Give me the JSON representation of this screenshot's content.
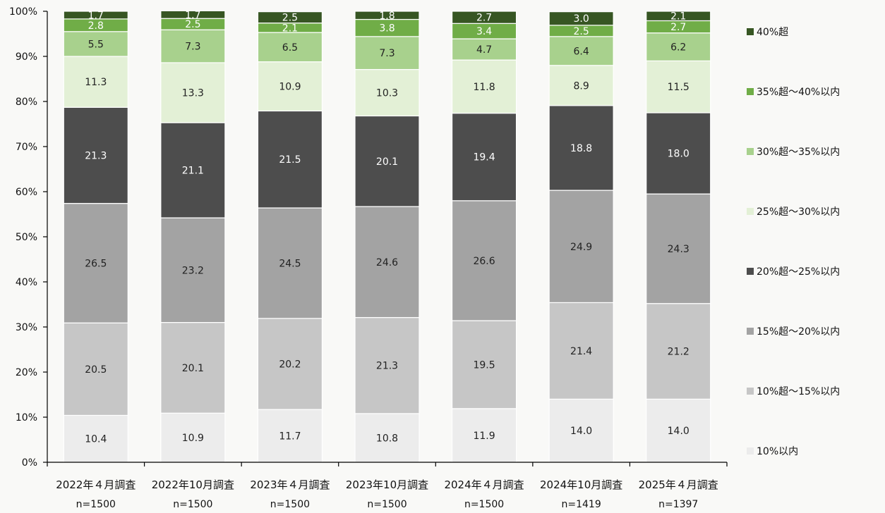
{
  "chart_data": {
    "type": "bar",
    "stacked": true,
    "percent": true,
    "categories": [
      "2022年４月調査",
      "2022年10月調査",
      "2023年４月調査",
      "2023年10月調査",
      "2024年４月調査",
      "2024年10月調査",
      "2025年４月調査"
    ],
    "sample_sizes": [
      "n=1500",
      "n=1500",
      "n=1500",
      "n=1500",
      "n=1500",
      "n=1419",
      "n=1397"
    ],
    "series": [
      {
        "name": "10%以内",
        "color": "#ececec",
        "label_color": "#222222",
        "values": [
          10.4,
          10.9,
          11.7,
          10.8,
          11.9,
          14.0,
          14.0
        ],
        "labels": [
          "10.4",
          "10.9",
          "11.7",
          "10.8",
          "11.9",
          "14.0",
          "14.0"
        ]
      },
      {
        "name": "10%超～15%以内",
        "color": "#c6c6c6",
        "label_color": "#222222",
        "values": [
          20.5,
          20.1,
          20.2,
          21.3,
          19.5,
          21.4,
          21.2
        ],
        "labels": [
          "20.5",
          "20.1",
          "20.2",
          "21.3",
          "19.5",
          "21.4",
          "21.2"
        ]
      },
      {
        "name": "15%超～20%以内",
        "color": "#a3a3a3",
        "label_color": "#222222",
        "values": [
          26.5,
          23.2,
          24.5,
          24.6,
          26.6,
          24.9,
          24.3
        ],
        "labels": [
          "26.5",
          "23.2",
          "24.5",
          "24.6",
          "26.6",
          "24.9",
          "24.3"
        ]
      },
      {
        "name": "20%超～25%以内",
        "color": "#4d4d4d",
        "label_color": "#ffffff",
        "values": [
          21.3,
          21.1,
          21.5,
          20.1,
          19.4,
          18.8,
          18.0
        ],
        "labels": [
          "21.3",
          "21.1",
          "21.5",
          "20.1",
          "19.4",
          "18.8",
          "18.0"
        ]
      },
      {
        "name": "25%超～30%以内",
        "color": "#e3f0d6",
        "label_color": "#222222",
        "values": [
          11.3,
          13.3,
          10.9,
          10.3,
          11.8,
          8.9,
          11.5
        ],
        "labels": [
          "11.3",
          "13.3",
          "10.9",
          "10.3",
          "11.8",
          "8.9",
          "11.5"
        ]
      },
      {
        "name": "30%超～35%以内",
        "color": "#a8d18d",
        "label_color": "#222222",
        "values": [
          5.5,
          7.3,
          6.5,
          7.3,
          4.7,
          6.4,
          6.2
        ],
        "labels": [
          "5.5",
          "7.3",
          "6.5",
          "7.3",
          "4.7",
          "6.4",
          "6.2"
        ]
      },
      {
        "name": "35%超～40%以内",
        "color": "#70ad47",
        "label_color": "#ffffff",
        "values": [
          2.8,
          2.5,
          2.1,
          3.8,
          3.4,
          2.5,
          2.7
        ],
        "labels": [
          "2.8",
          "2.5",
          "2.1",
          "3.8",
          "3.4",
          "2.5",
          "2.7"
        ]
      },
      {
        "name": "40%超",
        "color": "#375623",
        "label_color": "#ffffff",
        "values": [
          1.7,
          1.7,
          2.5,
          1.8,
          2.7,
          3.0,
          2.1
        ],
        "labels": [
          "1.7",
          "1.7",
          "2.5",
          "1.8",
          "2.7",
          "3.0",
          "2.1"
        ]
      }
    ],
    "yticks": [
      "0%",
      "10%",
      "20%",
      "30%",
      "40%",
      "50%",
      "60%",
      "70%",
      "80%",
      "90%",
      "100%"
    ],
    "ylim": [
      0,
      100
    ],
    "grid": false,
    "legend_position": "right",
    "legend_order": [
      "40%超",
      "35%超～40%以内",
      "30%超～35%以内",
      "25%超～30%以内",
      "20%超～25%以内",
      "15%超～20%以内",
      "10%超～15%以内",
      "10%以内"
    ]
  }
}
